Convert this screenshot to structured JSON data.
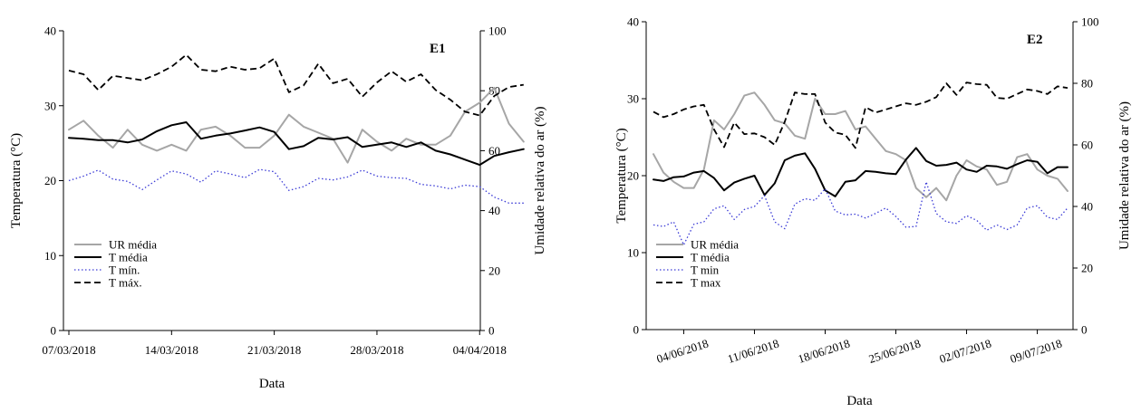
{
  "chart_data": [
    {
      "type": "line",
      "title": "E1",
      "xlabel": "Data",
      "ylabel_left": "Temperatura (°C)",
      "ylabel_right": "Umidade relativa do ar (%)",
      "y_left_lim": [
        0,
        40
      ],
      "y_left_ticks": [
        "0",
        "10",
        "20",
        "30",
        "40"
      ],
      "y_right_lim": [
        0,
        100
      ],
      "y_right_ticks": [
        "0",
        "20",
        "40",
        "60",
        "80",
        "100"
      ],
      "x_tick_labels": [
        "07/03/2018",
        "14/03/2018",
        "21/03/2018",
        "28/03/2018",
        "04/04/2018"
      ],
      "x_tick_positions": [
        0,
        7,
        14,
        21,
        28
      ],
      "x_max": 32,
      "x_tick_rotation": 0,
      "grid": false,
      "legend_position": "bottom-left",
      "series": [
        {
          "name": "UR média",
          "axis": "right",
          "style": "gray-solid",
          "values": [
            67,
            70,
            65,
            61,
            67,
            62,
            60,
            62,
            60,
            67,
            68,
            65,
            61,
            61,
            65,
            72,
            68,
            66,
            64,
            56,
            67,
            63,
            60,
            64,
            62,
            62,
            65,
            73,
            76,
            81,
            69,
            63
          ]
        },
        {
          "name": "T média",
          "axis": "left",
          "style": "black-solid",
          "values": [
            25.7,
            25.6,
            25.4,
            25.4,
            25.1,
            25.5,
            26.6,
            27.4,
            27.8,
            25.6,
            26.0,
            26.3,
            26.7,
            27.1,
            26.5,
            24.2,
            24.6,
            25.7,
            25.5,
            25.8,
            24.5,
            24.8,
            25.1,
            24.5,
            25.1,
            24.0,
            23.5,
            22.8,
            22.1,
            23.3,
            23.8,
            24.2
          ]
        },
        {
          "name": "T mín.",
          "axis": "left",
          "style": "blue-dotted",
          "values": [
            20.0,
            20.6,
            21.4,
            20.2,
            19.9,
            18.8,
            20.1,
            21.3,
            20.9,
            19.8,
            21.3,
            20.9,
            20.4,
            21.5,
            21.2,
            18.7,
            19.2,
            20.3,
            20.1,
            20.5,
            21.4,
            20.6,
            20.4,
            20.3,
            19.5,
            19.3,
            18.9,
            19.4,
            19.2,
            17.8,
            17.0,
            17.0
          ]
        },
        {
          "name": "T máx.",
          "axis": "left",
          "style": "black-dashed",
          "values": [
            34.7,
            34.2,
            32.1,
            34.0,
            33.7,
            33.4,
            34.2,
            35.2,
            36.8,
            34.8,
            34.6,
            35.2,
            34.8,
            35.0,
            36.3,
            31.8,
            32.7,
            35.6,
            33.0,
            33.6,
            31.2,
            33.1,
            34.6,
            33.2,
            34.2,
            32.1,
            30.8,
            29.2,
            28.7,
            31.3,
            32.5,
            32.8
          ]
        }
      ]
    },
    {
      "type": "line",
      "title": "E2",
      "xlabel": "Data",
      "ylabel_left": "Temperatura (°C)",
      "ylabel_right": "Umidade relativa do ar (%)",
      "y_left_lim": [
        0,
        40
      ],
      "y_left_ticks": [
        "0",
        "10",
        "20",
        "30",
        "40"
      ],
      "y_right_lim": [
        0,
        100
      ],
      "y_right_ticks": [
        "0",
        "20",
        "40",
        "60",
        "80",
        "100"
      ],
      "x_tick_labels": [
        "04/06/2018",
        "11/06/2018",
        "18/06/2018",
        "25/06/2018",
        "02/07/2018",
        "09/07/2018"
      ],
      "x_tick_positions": [
        3,
        10,
        17,
        24,
        31,
        38
      ],
      "x_max": 41,
      "x_tick_rotation": -18,
      "grid": false,
      "legend_position": "bottom-left",
      "series": [
        {
          "name": "UR média",
          "axis": "right",
          "style": "gray-solid",
          "values": [
            57,
            51,
            48,
            46,
            46,
            52,
            68,
            65,
            70,
            76,
            77,
            73,
            68,
            67,
            63,
            62,
            75,
            70,
            70,
            71,
            65,
            66,
            62,
            58,
            57,
            55,
            46,
            43,
            46,
            42,
            50,
            55,
            53,
            52,
            47,
            48,
            56,
            57,
            52,
            50,
            49,
            45
          ]
        },
        {
          "name": "T média",
          "axis": "left",
          "style": "black-solid",
          "values": [
            19.5,
            19.3,
            19.8,
            19.9,
            20.4,
            20.6,
            19.7,
            18.1,
            19.1,
            19.6,
            20.0,
            17.5,
            19.0,
            22.0,
            22.6,
            22.9,
            20.9,
            18.1,
            17.3,
            19.2,
            19.4,
            20.6,
            20.5,
            20.3,
            20.2,
            22.1,
            23.6,
            21.9,
            21.3,
            21.4,
            21.7,
            20.8,
            20.5,
            21.3,
            21.2,
            20.9,
            21.5,
            22.0,
            21.8,
            20.3,
            21.1,
            21.1
          ]
        },
        {
          "name": "T min",
          "axis": "left",
          "style": "blue-dotted",
          "values": [
            13.6,
            13.4,
            14.0,
            11.0,
            13.7,
            14.0,
            15.7,
            16.1,
            14.3,
            15.6,
            16.0,
            17.4,
            14.0,
            13.1,
            16.3,
            17.0,
            16.8,
            18.3,
            15.4,
            14.9,
            15.0,
            14.5,
            15.1,
            15.8,
            14.7,
            13.3,
            13.4,
            19.2,
            15.1,
            14.0,
            13.8,
            14.8,
            14.2,
            12.9,
            13.6,
            13.0,
            13.6,
            15.8,
            16.1,
            14.6,
            14.3,
            15.8
          ]
        },
        {
          "name": "T max",
          "axis": "left",
          "style": "black-dashed",
          "values": [
            28.3,
            27.6,
            28.0,
            28.6,
            29.0,
            29.2,
            26.0,
            23.7,
            26.9,
            25.4,
            25.5,
            25.0,
            24.0,
            27.0,
            30.8,
            30.6,
            30.6,
            26.9,
            25.6,
            25.3,
            23.6,
            28.9,
            28.2,
            28.6,
            29.0,
            29.4,
            29.2,
            29.6,
            30.2,
            32.0,
            30.5,
            32.1,
            31.9,
            31.8,
            30.1,
            30.0,
            30.6,
            31.2,
            31.0,
            30.6,
            31.6,
            31.4
          ]
        }
      ]
    }
  ]
}
